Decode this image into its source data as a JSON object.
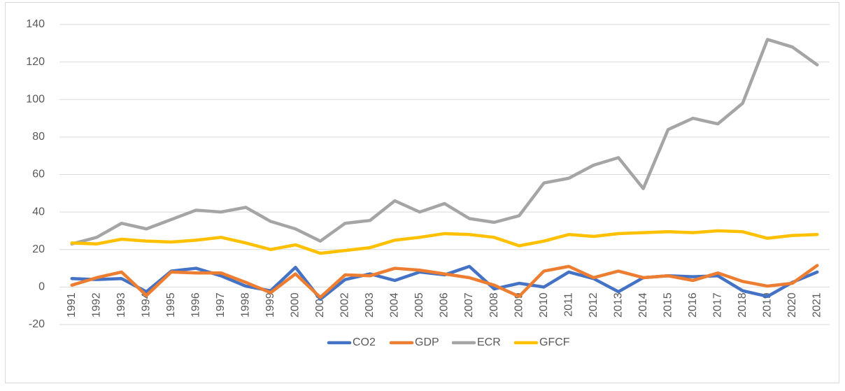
{
  "chart_data": {
    "type": "line",
    "categories": [
      "1991",
      "1992",
      "1993",
      "1994",
      "1995",
      "1996",
      "1997",
      "1998",
      "1999",
      "2000",
      "2001",
      "2002",
      "2003",
      "2004",
      "2005",
      "2006",
      "2007",
      "2008",
      "2009",
      "2010",
      "2011",
      "2012",
      "2013",
      "2014",
      "2015",
      "2016",
      "2017",
      "2018",
      "2019",
      "2020",
      "2021"
    ],
    "series": [
      {
        "name": "CO2",
        "color": "#4472c4",
        "values": [
          4.5,
          4,
          4.5,
          -2.5,
          8.5,
          10,
          6,
          0.5,
          -2,
          10.5,
          -6.5,
          4,
          7,
          3.5,
          8,
          6.5,
          11,
          -1,
          2,
          0,
          8,
          4.5,
          -2.5,
          5,
          6,
          5.5,
          6,
          -2,
          -5,
          2.5,
          8
        ]
      },
      {
        "name": "GDP",
        "color": "#ed7d31",
        "values": [
          1,
          5,
          8,
          -4.5,
          8,
          7.5,
          7.5,
          2.5,
          -3,
          7,
          -5.5,
          6.5,
          6,
          10,
          9,
          7,
          5,
          1,
          -5,
          8.5,
          11,
          5,
          8.5,
          5,
          6,
          3.5,
          7.5,
          3,
          0.5,
          2,
          11.5
        ]
      },
      {
        "name": "ECR",
        "color": "#a5a5a5",
        "values": [
          23,
          26.5,
          34,
          31,
          36,
          41,
          40,
          42.5,
          35,
          31,
          24.5,
          34,
          35.5,
          46,
          40,
          44.5,
          36.5,
          34.5,
          38,
          55.5,
          58,
          65,
          69,
          52.5,
          84,
          90,
          87,
          98,
          132,
          128,
          118.5
        ]
      },
      {
        "name": "GFCF",
        "color": "#ffc000",
        "values": [
          23.5,
          23,
          25.5,
          24.5,
          24,
          25,
          26.5,
          23.5,
          20,
          22.5,
          18,
          19.5,
          21,
          25,
          26.5,
          28.5,
          28,
          26.5,
          22,
          24.5,
          28,
          27,
          28.5,
          29,
          29.5,
          29,
          30,
          29.5,
          26,
          27.5,
          28
        ]
      }
    ],
    "ylim": [
      -20,
      140
    ],
    "yticks": [
      -20,
      0,
      20,
      40,
      60,
      80,
      100,
      120,
      140
    ],
    "grid": true,
    "legend": "bottom"
  }
}
